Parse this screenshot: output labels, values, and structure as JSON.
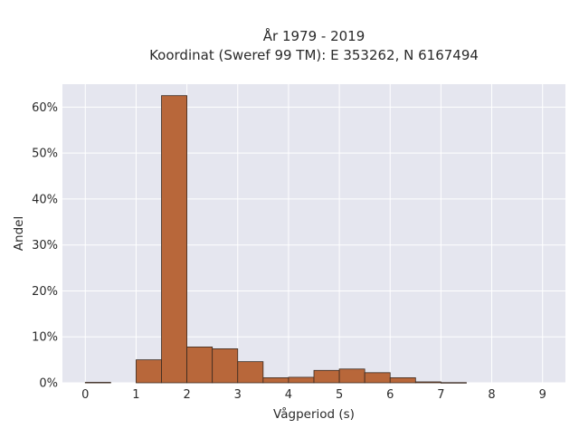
{
  "chart_data": {
    "type": "bar",
    "title_line1": "År 1979 - 2019",
    "title_line2": "Koordinat (Sweref 99 TM): E 353262, N 6167494",
    "xlabel": "Vågperiod (s)",
    "ylabel": "Andel",
    "xlim": [
      -0.45,
      9.45
    ],
    "ylim": [
      0,
      0.65
    ],
    "x_ticks": [
      0,
      1,
      2,
      3,
      4,
      5,
      6,
      7,
      8,
      9
    ],
    "y_ticks": [
      0,
      0.1,
      0.2,
      0.3,
      0.4,
      0.5,
      0.6
    ],
    "y_tick_labels": [
      "0%",
      "10%",
      "20%",
      "30%",
      "40%",
      "50%",
      "60%"
    ],
    "grid": true,
    "bar_color": "#b8673a",
    "bar_edge_color": "#3a2a20",
    "plot_background": "#e5e6ef",
    "bins": [
      {
        "x0": 0.0,
        "x1": 0.5,
        "value": 0.001
      },
      {
        "x0": 0.5,
        "x1": 1.0,
        "value": 0.0
      },
      {
        "x0": 1.0,
        "x1": 1.5,
        "value": 0.05
      },
      {
        "x0": 1.5,
        "x1": 2.0,
        "value": 0.625
      },
      {
        "x0": 2.0,
        "x1": 2.5,
        "value": 0.078
      },
      {
        "x0": 2.5,
        "x1": 3.0,
        "value": 0.074
      },
      {
        "x0": 3.0,
        "x1": 3.5,
        "value": 0.046
      },
      {
        "x0": 3.5,
        "x1": 4.0,
        "value": 0.011
      },
      {
        "x0": 4.0,
        "x1": 4.5,
        "value": 0.012
      },
      {
        "x0": 4.5,
        "x1": 5.0,
        "value": 0.027
      },
      {
        "x0": 5.0,
        "x1": 5.5,
        "value": 0.03
      },
      {
        "x0": 5.5,
        "x1": 6.0,
        "value": 0.022
      },
      {
        "x0": 6.0,
        "x1": 6.5,
        "value": 0.011
      },
      {
        "x0": 6.5,
        "x1": 7.0,
        "value": 0.002
      },
      {
        "x0": 7.0,
        "x1": 7.5,
        "value": 0.0005
      }
    ]
  }
}
